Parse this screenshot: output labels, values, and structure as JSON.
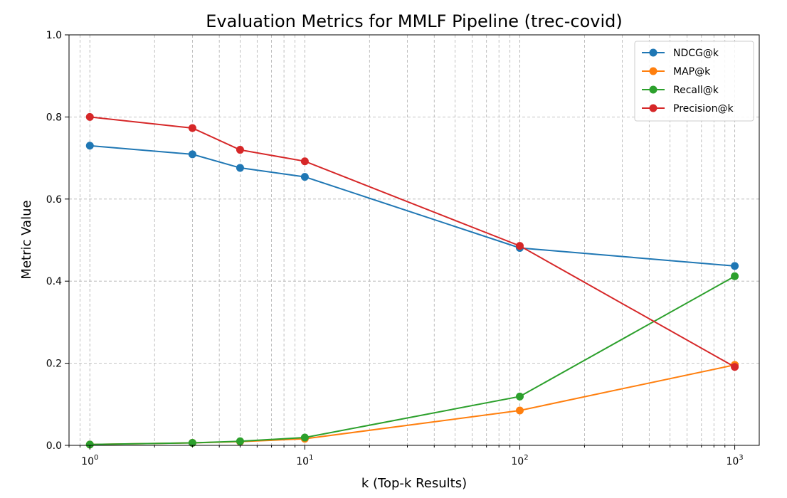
{
  "chart_data": {
    "type": "line",
    "title": "Evaluation Metrics for MMLF Pipeline (trec-covid)",
    "xlabel": "k (Top-k Results)",
    "ylabel": "Metric Value",
    "xscale": "log",
    "xlim": [
      0.8,
      1300
    ],
    "ylim": [
      0,
      1
    ],
    "x": [
      1,
      3,
      5,
      10,
      100,
      1000
    ],
    "x_ticks": [
      {
        "value": 1,
        "base": "10",
        "exp": "0"
      },
      {
        "value": 10,
        "base": "10",
        "exp": "1"
      },
      {
        "value": 100,
        "base": "10",
        "exp": "2"
      },
      {
        "value": 1000,
        "base": "10",
        "exp": "3"
      }
    ],
    "y_ticks": [
      {
        "value": 0,
        "label": "0.0"
      },
      {
        "value": 0.2,
        "label": "0.2"
      },
      {
        "value": 0.4,
        "label": "0.4"
      },
      {
        "value": 0.6,
        "label": "0.6"
      },
      {
        "value": 0.8,
        "label": "0.8"
      },
      {
        "value": 1.0,
        "label": "1.0"
      }
    ],
    "grid": true,
    "legend_position": "top-right",
    "series": [
      {
        "name": "NDCG@k",
        "color": "#1f77b4",
        "values": [
          0.73,
          0.709,
          0.676,
          0.654,
          0.481,
          0.437
        ]
      },
      {
        "name": "MAP@k",
        "color": "#ff7f0e",
        "values": [
          0.002,
          0.006,
          0.009,
          0.016,
          0.085,
          0.196
        ]
      },
      {
        "name": "Recall@k",
        "color": "#2ca02c",
        "values": [
          0.002,
          0.006,
          0.01,
          0.019,
          0.119,
          0.412
        ]
      },
      {
        "name": "Precision@k",
        "color": "#d62728",
        "values": [
          0.8,
          0.773,
          0.72,
          0.692,
          0.486,
          0.191
        ]
      }
    ]
  }
}
